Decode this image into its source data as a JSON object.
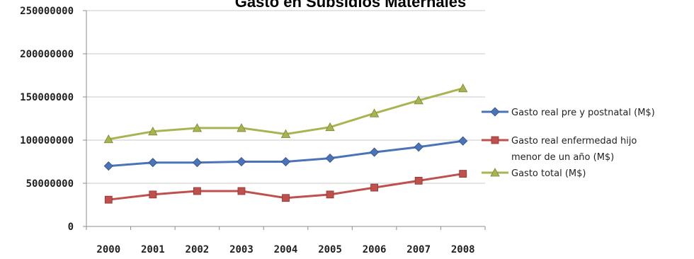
{
  "chart_data": {
    "type": "line",
    "title": "Gasto en Subsidios Maternales",
    "categories": [
      "2000",
      "2001",
      "2002",
      "2003",
      "2004",
      "2005",
      "2006",
      "2007",
      "2008"
    ],
    "yticks": [
      "0",
      "50000000",
      "100000000",
      "150000000",
      "200000000",
      "250000000"
    ],
    "ylim": [
      0,
      250000000
    ],
    "grid": true,
    "legend_position": "right",
    "series": [
      {
        "name": "Gasto real pre y postnatal (M$)",
        "legend_lines": [
          "Gasto real pre y postnatal (M$)"
        ],
        "color": "#4a73b8",
        "marker": "diamond",
        "values": [
          70000000,
          74000000,
          74000000,
          75000000,
          75000000,
          79000000,
          86000000,
          92000000,
          99000000
        ]
      },
      {
        "name": "Gasto real enfermedad hijo menor de un año (M$)",
        "legend_lines": [
          "Gasto real enfermedad hijo",
          "menor de un año (M$)"
        ],
        "color": "#c0504d",
        "marker": "square",
        "values": [
          31000000,
          37000000,
          41000000,
          41000000,
          33000000,
          37000000,
          45000000,
          53000000,
          61000000
        ]
      },
      {
        "name": "Gasto total (M$)",
        "legend_lines": [
          "Gasto total (M$)"
        ],
        "color": "#a9b450",
        "marker": "triangle",
        "values": [
          101000000,
          110000000,
          114000000,
          114000000,
          107000000,
          115000000,
          131000000,
          146000000,
          160000000
        ]
      }
    ]
  }
}
